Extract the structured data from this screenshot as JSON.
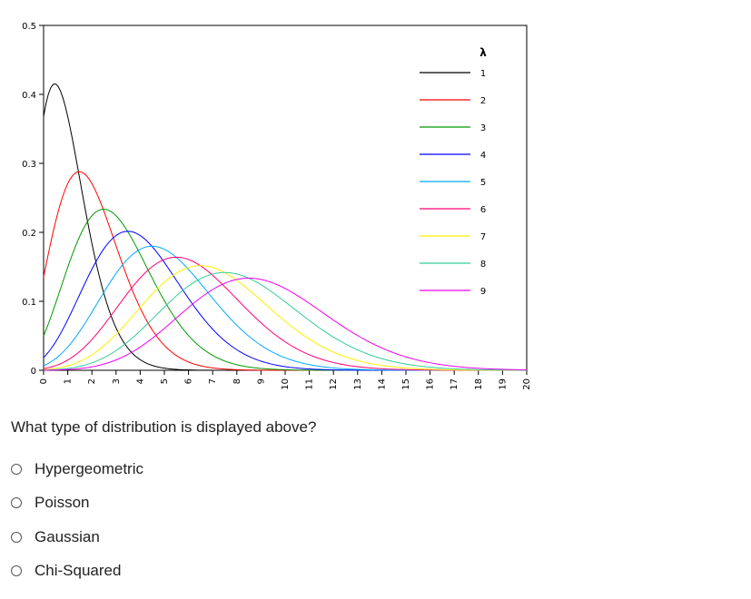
{
  "chart_data": {
    "type": "line",
    "x": [
      0,
      1,
      2,
      3,
      4,
      5,
      6,
      7,
      8,
      9,
      10,
      11,
      12,
      13,
      14,
      15,
      16,
      17,
      18,
      19,
      20
    ],
    "xlim": [
      0,
      20
    ],
    "ylim": [
      0,
      0.5
    ],
    "yticks": [
      0,
      0.1,
      0.2,
      0.3,
      0.4,
      0.5
    ],
    "ytick_labels": [
      "0",
      "0.1",
      "0.2",
      "0.3",
      "0.4",
      "0.5"
    ],
    "xtick_labels": [
      "0",
      "1",
      "2",
      "3",
      "4",
      "5",
      "6",
      "7",
      "8",
      "9",
      "10",
      "11",
      "12",
      "13",
      "14",
      "15",
      "16",
      "17",
      "18",
      "19",
      "20"
    ],
    "legend_title": "λ",
    "legend_position": "top-right",
    "grid": false,
    "series": [
      {
        "name": "1",
        "color": "#000000",
        "lambda": 1
      },
      {
        "name": "2",
        "color": "#ff0000",
        "lambda": 2
      },
      {
        "name": "3",
        "color": "#009900",
        "lambda": 3
      },
      {
        "name": "4",
        "color": "#0000ff",
        "lambda": 4
      },
      {
        "name": "5",
        "color": "#00aaff",
        "lambda": 5
      },
      {
        "name": "6",
        "color": "#ff0077",
        "lambda": 6
      },
      {
        "name": "7",
        "color": "#ffee00",
        "lambda": 7
      },
      {
        "name": "8",
        "color": "#33cc99",
        "lambda": 8
      },
      {
        "name": "9",
        "color": "#ee00ee",
        "lambda": 9
      }
    ]
  },
  "question": {
    "text": "What type of distribution is displayed above?",
    "options": [
      "Hypergeometric",
      "Poisson",
      "Gaussian",
      "Chi-Squared"
    ]
  }
}
